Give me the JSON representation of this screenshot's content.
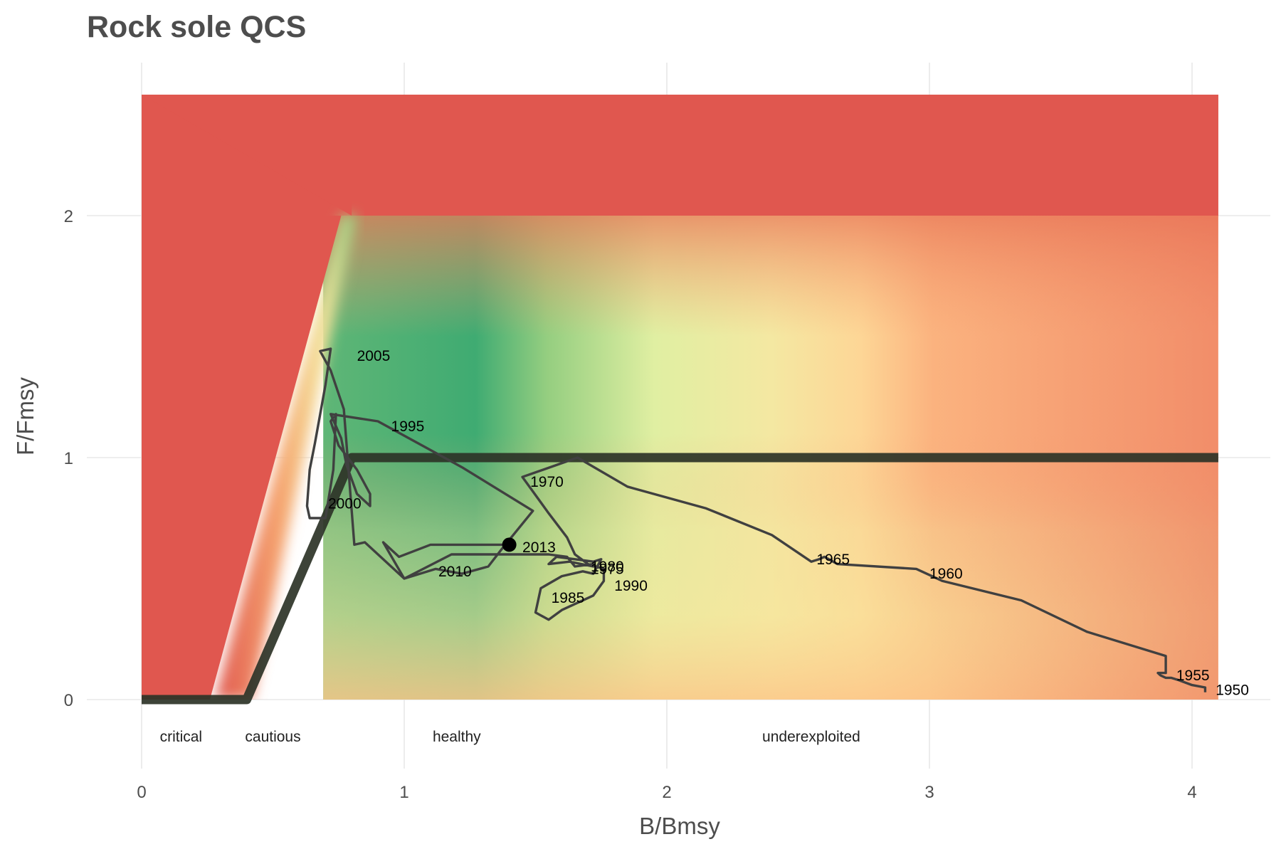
{
  "chart_data": {
    "type": "line",
    "title": "Rock sole QCS",
    "xlabel": "B/Bmsy",
    "ylabel": "F/Fmsy",
    "xlim": [
      -0.2,
      4.3
    ],
    "ylim": [
      -0.3,
      2.6
    ],
    "x_ticks": [
      "0",
      "1",
      "2",
      "3",
      "4"
    ],
    "y_ticks": [
      "0",
      "1",
      "2"
    ],
    "grid": true,
    "zone_labels": [
      {
        "text": "critical",
        "x": 0.15,
        "y": -0.15
      },
      {
        "text": "cautious",
        "x": 0.5,
        "y": -0.15
      },
      {
        "text": "healthy",
        "x": 1.2,
        "y": -0.15
      },
      {
        "text": "underexploited",
        "x": 2.55,
        "y": -0.15
      }
    ],
    "reference_line": {
      "name": "harvest control rule",
      "x": [
        0,
        0.4,
        0.8,
        4.1
      ],
      "y": [
        0,
        0,
        1,
        1
      ]
    },
    "trajectory": {
      "x": [
        4.05,
        4.05,
        4.0,
        3.95,
        3.92,
        3.9,
        3.88,
        3.87,
        3.9,
        3.9,
        3.6,
        3.35,
        3.05,
        2.95,
        2.65,
        2.6,
        2.58,
        2.55,
        2.4,
        2.15,
        1.85,
        1.66,
        1.45,
        1.55,
        1.62,
        1.65,
        1.7,
        1.76,
        1.76,
        1.72,
        1.6,
        1.55,
        1.5,
        1.52,
        1.6,
        1.68,
        1.72,
        1.75,
        1.72,
        1.58,
        1.55,
        1.63,
        1.72,
        1.72,
        1.65,
        1.62,
        1.55,
        1.5,
        1.4,
        1.28,
        1.18,
        1.0,
        0.9,
        0.85,
        0.81,
        0.77,
        0.72,
        0.68,
        0.72,
        0.7,
        0.66,
        0.64,
        0.63,
        0.64,
        0.7,
        0.73,
        0.74,
        0.72,
        0.75,
        0.82,
        0.87,
        0.87,
        0.82,
        0.78,
        0.76,
        0.72,
        0.9,
        1.22,
        1.49,
        1.37,
        1.32,
        1.22,
        1.12,
        1.0,
        0.92,
        0.98,
        1.1,
        1.23,
        1.4
      ],
      "y": [
        0.03,
        0.05,
        0.06,
        0.08,
        0.09,
        0.09,
        0.1,
        0.11,
        0.11,
        0.18,
        0.28,
        0.41,
        0.49,
        0.54,
        0.56,
        0.59,
        0.58,
        0.57,
        0.68,
        0.79,
        0.88,
        1.0,
        0.92,
        0.77,
        0.67,
        0.6,
        0.56,
        0.54,
        0.49,
        0.43,
        0.37,
        0.33,
        0.36,
        0.46,
        0.51,
        0.53,
        0.52,
        0.58,
        0.57,
        0.59,
        0.56,
        0.57,
        0.55,
        0.56,
        0.55,
        0.59,
        0.6,
        0.6,
        0.6,
        0.6,
        0.6,
        0.5,
        0.6,
        0.65,
        0.64,
        1.2,
        1.36,
        1.44,
        1.45,
        1.3,
        1.06,
        0.95,
        0.8,
        0.75,
        0.75,
        0.95,
        1.18,
        1.15,
        1.05,
        0.95,
        0.85,
        0.8,
        0.85,
        0.97,
        1.08,
        1.18,
        1.15,
        0.96,
        0.78,
        0.62,
        0.55,
        0.52,
        0.54,
        0.5,
        0.65,
        0.59,
        0.64,
        0.64,
        0.64
      ]
    },
    "year_labels": [
      {
        "text": "1950",
        "x": 4.09,
        "y": 0.04
      },
      {
        "text": "1955",
        "x": 3.94,
        "y": 0.1
      },
      {
        "text": "1960",
        "x": 3.0,
        "y": 0.52
      },
      {
        "text": "1965",
        "x": 2.57,
        "y": 0.58
      },
      {
        "text": "1970",
        "x": 1.48,
        "y": 0.9
      },
      {
        "text": "1975",
        "x": 1.71,
        "y": 0.54
      },
      {
        "text": "1980",
        "x": 1.71,
        "y": 0.55
      },
      {
        "text": "1985",
        "x": 1.56,
        "y": 0.42
      },
      {
        "text": "1990",
        "x": 1.8,
        "y": 0.47
      },
      {
        "text": "1995",
        "x": 0.95,
        "y": 1.13
      },
      {
        "text": "2000",
        "x": 0.71,
        "y": 0.81
      },
      {
        "text": "2005",
        "x": 0.82,
        "y": 1.42
      },
      {
        "text": "2010",
        "x": 1.13,
        "y": 0.53
      },
      {
        "text": "2013",
        "x": 1.45,
        "y": 0.63
      }
    ],
    "current_point": {
      "label": "2013",
      "x": 1.4,
      "y": 0.64
    },
    "colors": {
      "overfished": "#e0574f",
      "healthy_core": "#3aa870",
      "transition_yellow": "#ece89a",
      "orange": "#f9b27f",
      "trajectory_line": "#404040",
      "reference_line": "#2d3327"
    }
  }
}
